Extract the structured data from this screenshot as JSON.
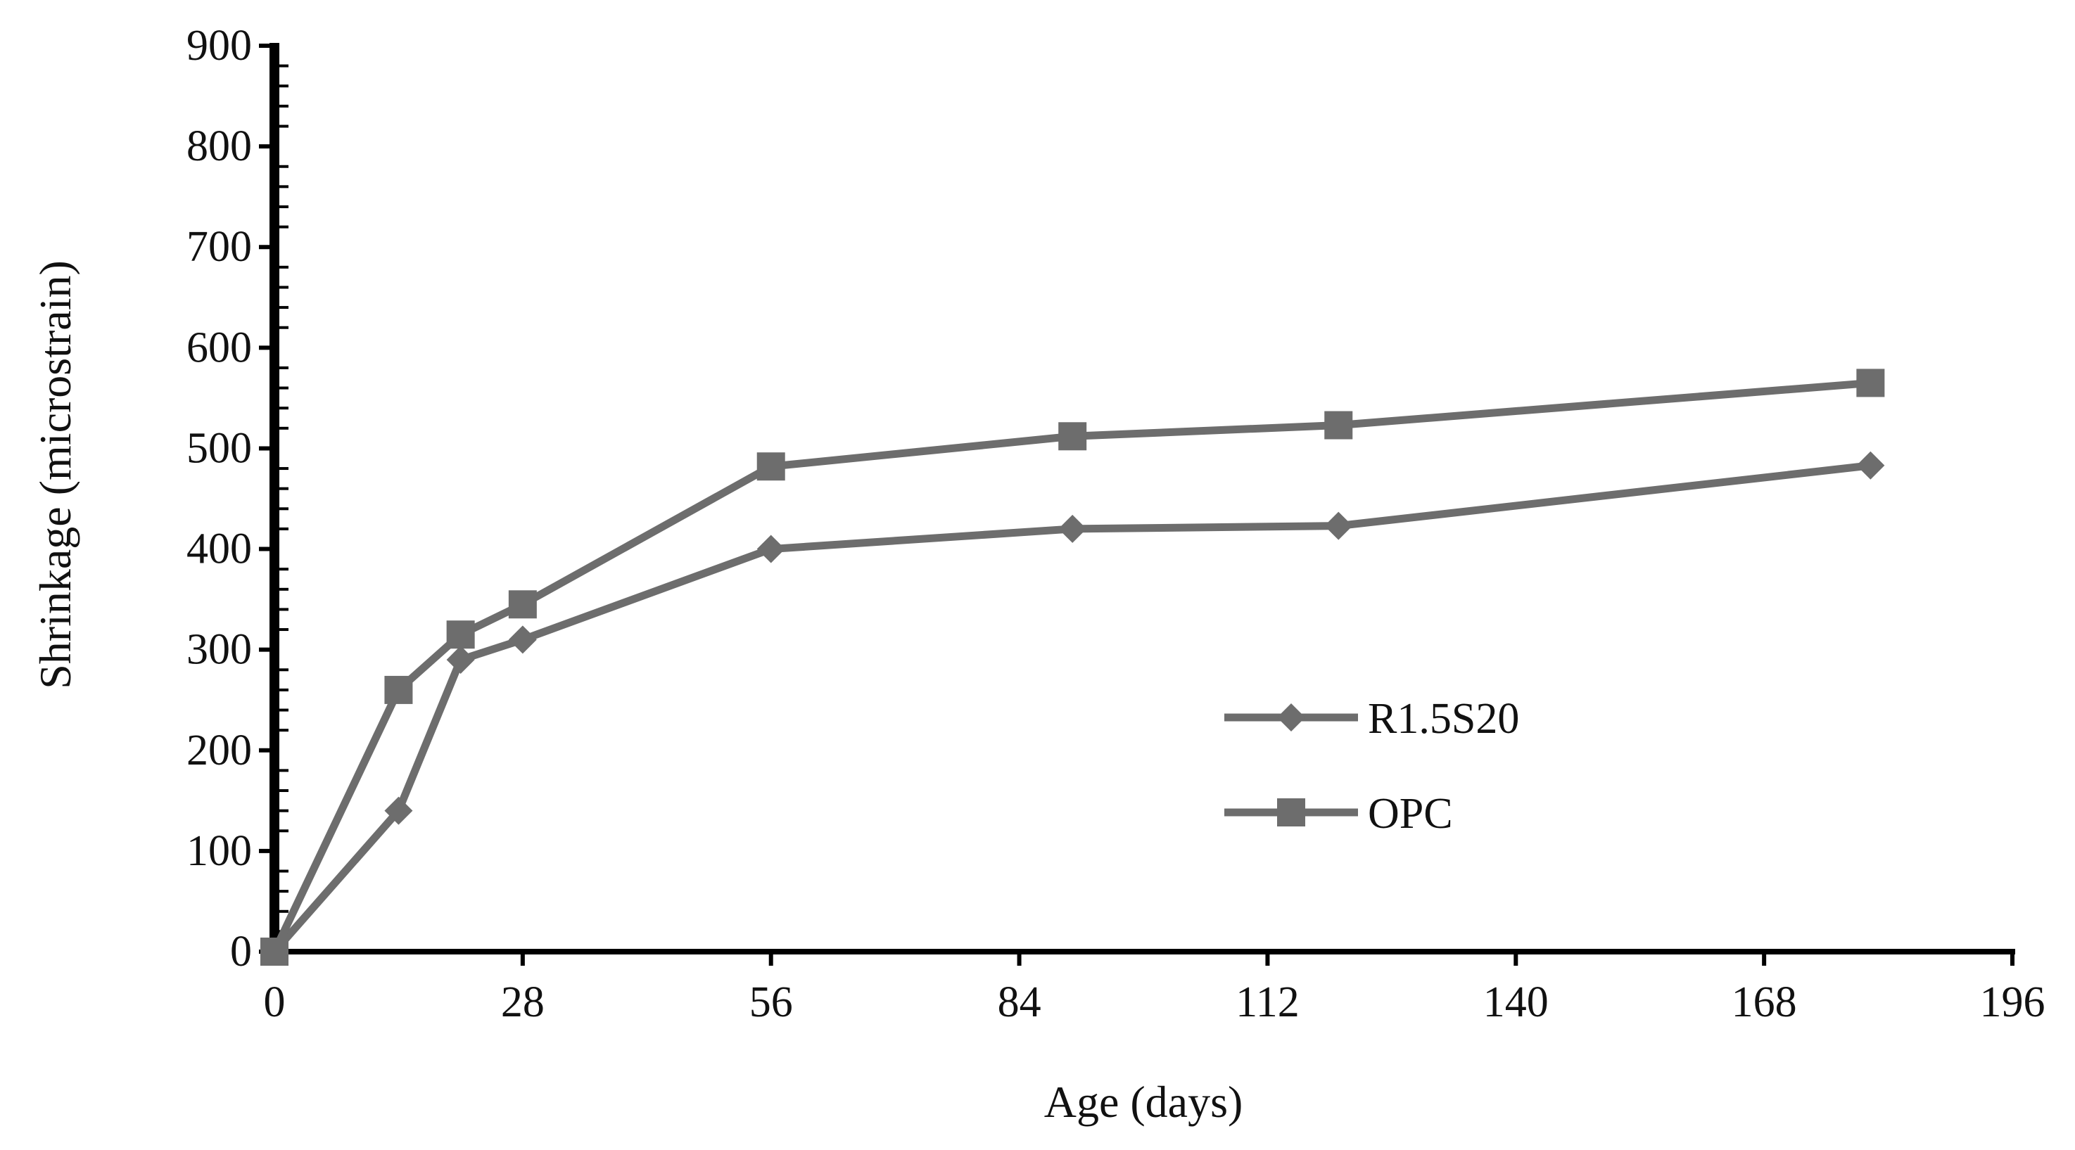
{
  "chart_data": {
    "type": "line",
    "title": "",
    "xlabel": "Age (days)",
    "ylabel": "Shrinkage (microstrain)",
    "xlim": [
      0,
      196
    ],
    "ylim": [
      0,
      900
    ],
    "x_ticks": [
      0,
      28,
      56,
      84,
      112,
      140,
      168,
      196
    ],
    "y_ticks": [
      0,
      100,
      200,
      300,
      400,
      500,
      600,
      700,
      800,
      900
    ],
    "grid": false,
    "legend_position": "center-right",
    "series": [
      {
        "name": "R1.5S20",
        "marker": "diamond",
        "color": "#6d6d6d",
        "x": [
          0,
          14,
          21,
          28,
          56,
          90,
          120,
          180
        ],
        "y": [
          0,
          140,
          290,
          310,
          400,
          420,
          423,
          483
        ]
      },
      {
        "name": "OPC",
        "marker": "square",
        "color": "#6d6d6d",
        "x": [
          0,
          14,
          21,
          28,
          56,
          90,
          120,
          180
        ],
        "y": [
          0,
          260,
          315,
          345,
          482,
          512,
          523,
          565
        ]
      }
    ]
  }
}
